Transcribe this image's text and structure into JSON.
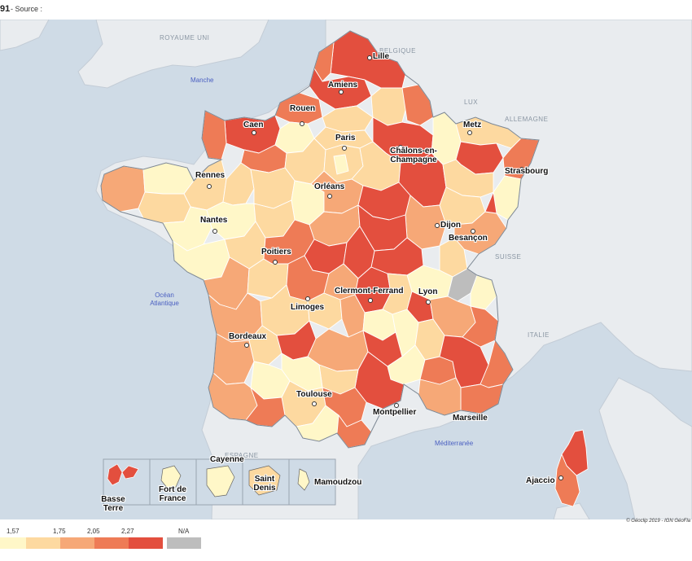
{
  "header": {
    "year_fragment": "91",
    "source_label": "- Source :"
  },
  "map": {
    "countries": [
      "ROYAUME UNI",
      "BELGIQUE",
      "LUX",
      "ALLEMAGNE",
      "SUISSE",
      "ITALIE",
      "ESPAGNE"
    ],
    "seas": [
      "Manche",
      "Océan Atlantique",
      "Méditerranée"
    ],
    "cities": [
      "Lille",
      "Amiens",
      "Rouen",
      "Caen",
      "Paris",
      "Metz",
      "Châlons-en-Champagne",
      "Strasbourg",
      "Rennes",
      "Orléans",
      "Nantes",
      "Dijon",
      "Besançon",
      "Poitiers",
      "Clermont-Ferrand",
      "Lyon",
      "Limoges",
      "Bordeaux",
      "Toulouse",
      "Montpellier",
      "Marseille",
      "Ajaccio"
    ],
    "overseas": [
      "Basse Terre",
      "Fort de France",
      "Cayenne",
      "Saint Denis",
      "Mamoudzou"
    ],
    "colors": {
      "sea": "#cfdbe6",
      "land_foreign": "#e9ecef",
      "class1": "#fff7c8",
      "class2": "#fdd9a0",
      "class3": "#f6a877",
      "class4": "#ee7b56",
      "class5": "#e34f3e",
      "na": "#bdbdbd"
    },
    "credit": "© Géoclip 2019 - IGN GéoFla"
  },
  "legend": {
    "thresholds": [
      "1,57",
      "1,75",
      "2,05",
      "2,27"
    ],
    "na_label": "N/A"
  }
}
